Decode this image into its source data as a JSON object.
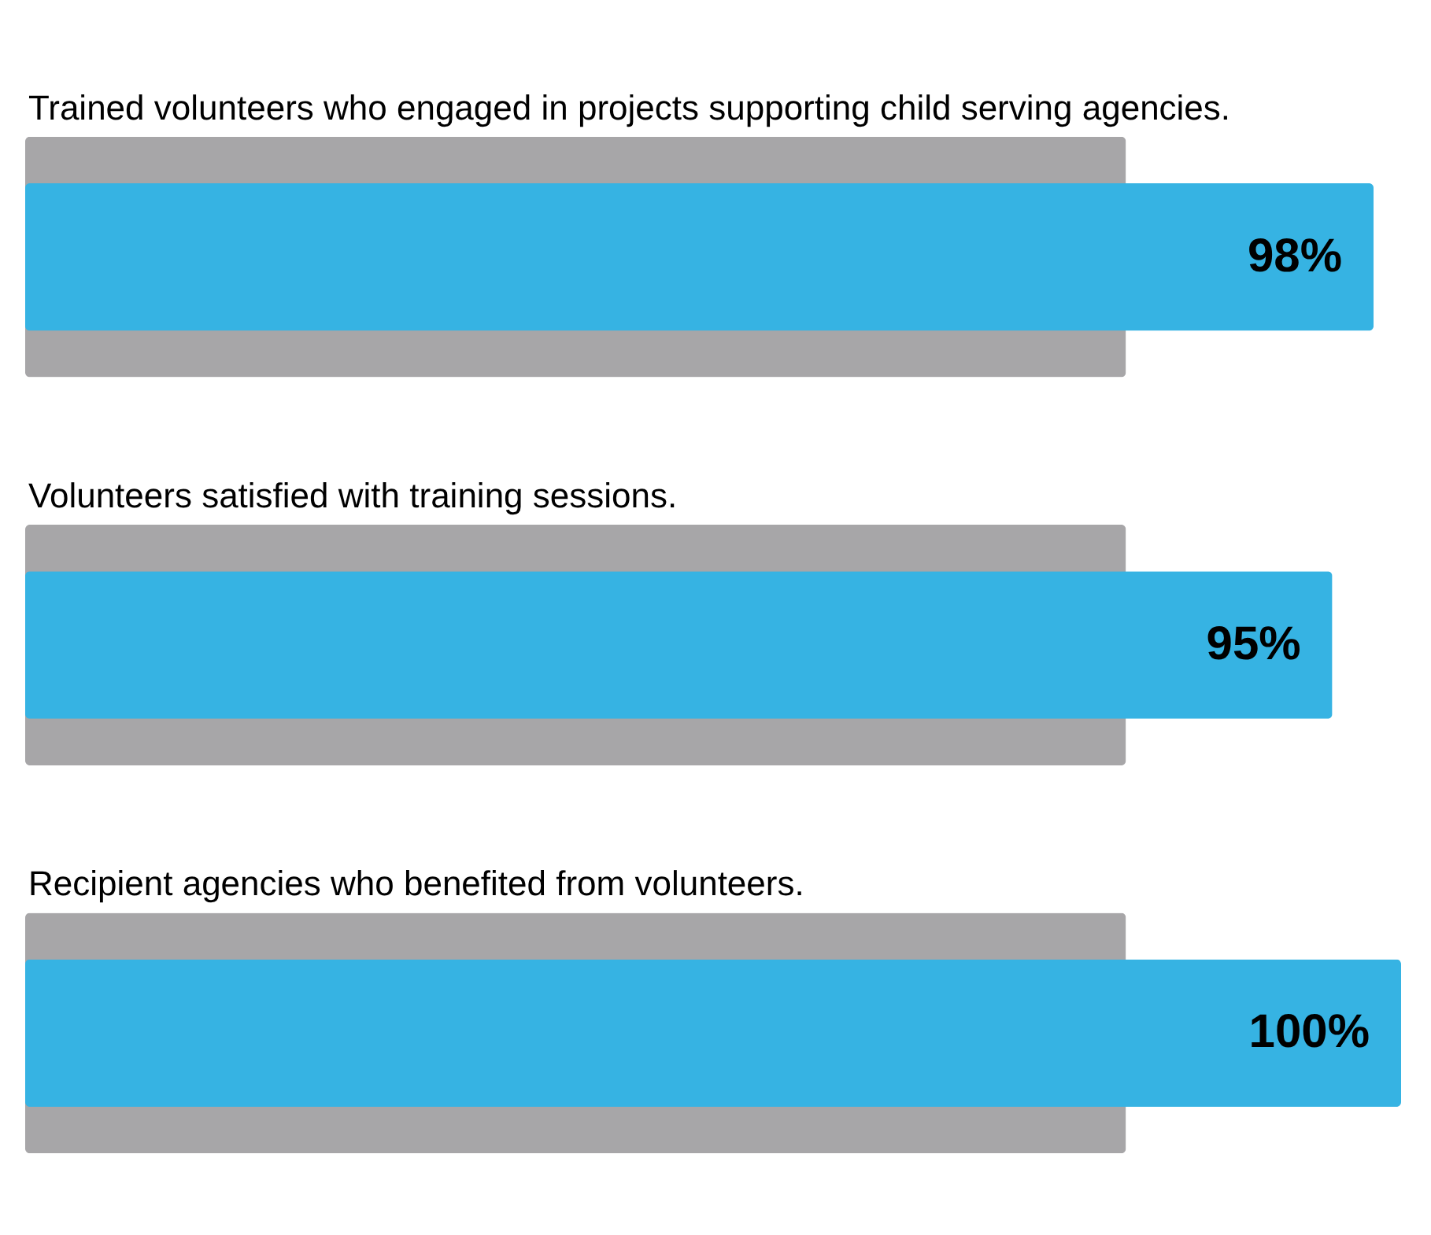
{
  "chart_data": {
    "type": "bar",
    "orientation": "horizontal",
    "categories": [
      "Trained volunteers who engaged in projects supporting child serving agencies.",
      "Volunteers satisfied with training sessions.",
      "Recipient agencies who benefited from volunteers."
    ],
    "series": [
      {
        "color": "#a7a6a8",
        "values": [
          80,
          80,
          80
        ]
      },
      {
        "color": "#36b3e3",
        "values": [
          98,
          95,
          100
        ],
        "value_labels": [
          "98%",
          "95%",
          "100%"
        ]
      }
    ],
    "xlim": [
      0,
      100
    ],
    "tick_labels": "y"
  }
}
